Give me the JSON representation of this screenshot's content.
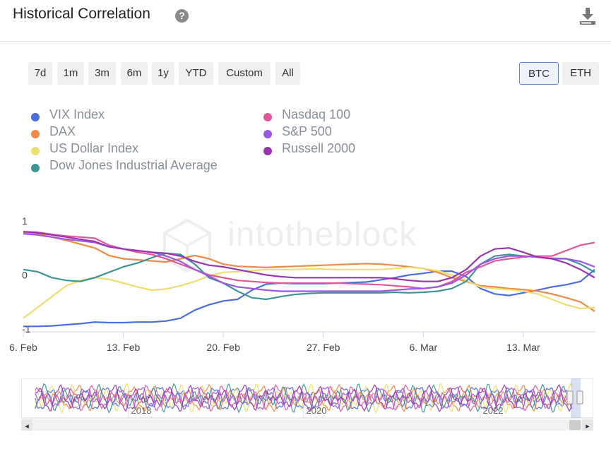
{
  "header": {
    "title": "Historical Correlation",
    "help_glyph": "?"
  },
  "ranges": [
    "7d",
    "1m",
    "3m",
    "6m",
    "1y",
    "YTD",
    "Custom",
    "All"
  ],
  "assets": {
    "btc": "BTC",
    "eth": "ETH",
    "selected": "BTC"
  },
  "watermark": "intotheblock",
  "legend": [
    {
      "label": "VIX Index",
      "color": "#4a6ee0"
    },
    {
      "label": "DAX",
      "color": "#ee8a4a"
    },
    {
      "label": "US Dollar Index",
      "color": "#eedf6e"
    },
    {
      "label": "Dow Jones Industrial Average",
      "color": "#3f9596"
    },
    {
      "label": "Nasdaq 100",
      "color": "#e0579c"
    },
    {
      "label": "S&P 500",
      "color": "#9b59e0"
    },
    {
      "label": "Russell 2000",
      "color": "#9a35b0"
    }
  ],
  "chart_data": {
    "type": "line",
    "x": [
      0,
      1,
      2,
      3,
      4,
      5,
      6,
      7,
      8,
      9,
      10,
      11,
      12,
      13,
      14,
      15,
      16,
      17,
      18,
      19,
      20,
      21,
      22,
      23,
      24,
      25,
      26,
      27,
      28,
      29,
      30,
      31,
      32,
      33,
      34,
      35,
      36,
      37,
      38,
      39,
      40
    ],
    "x_ticks": [
      {
        "x": 0,
        "label": "6. Feb"
      },
      {
        "x": 7,
        "label": "13. Feb"
      },
      {
        "x": 14,
        "label": "20. Feb"
      },
      {
        "x": 21,
        "label": "27. Feb"
      },
      {
        "x": 28,
        "label": "6. Mar"
      },
      {
        "x": 35,
        "label": "13. Mar"
      }
    ],
    "y_ticks": [
      {
        "y": 1,
        "label": "1"
      },
      {
        "y": 0,
        "label": "0"
      },
      {
        "y": -1,
        "label": "-1"
      }
    ],
    "ylim": [
      -1.05,
      1.05
    ],
    "series": [
      {
        "name": "VIX Index",
        "color": "#4a6ee0",
        "values": [
          -0.95,
          -0.95,
          -0.94,
          -0.92,
          -0.9,
          -0.87,
          -0.88,
          -0.88,
          -0.87,
          -0.87,
          -0.85,
          -0.8,
          -0.65,
          -0.55,
          -0.48,
          -0.45,
          -0.28,
          -0.17,
          -0.15,
          -0.16,
          -0.16,
          -0.16,
          -0.15,
          -0.14,
          -0.13,
          -0.09,
          -0.05,
          0.0,
          0.03,
          0.07,
          0.07,
          -0.03,
          -0.25,
          -0.35,
          -0.38,
          -0.33,
          -0.28,
          -0.22,
          -0.18,
          -0.12,
          0.1
        ]
      },
      {
        "name": "DAX",
        "color": "#ee8a4a",
        "values": [
          0.78,
          0.76,
          0.7,
          0.64,
          0.57,
          0.5,
          0.36,
          0.3,
          0.28,
          0.26,
          0.24,
          0.3,
          0.36,
          0.3,
          0.2,
          0.16,
          0.15,
          0.14,
          0.15,
          0.16,
          0.17,
          0.18,
          0.19,
          0.2,
          0.21,
          0.2,
          0.18,
          0.15,
          0.12,
          0.05,
          -0.05,
          -0.12,
          -0.2,
          -0.22,
          -0.25,
          -0.27,
          -0.3,
          -0.35,
          -0.42,
          -0.5,
          -0.67
        ]
      },
      {
        "name": "US Dollar Index",
        "color": "#eedf6e",
        "values": [
          -0.8,
          -0.6,
          -0.4,
          -0.2,
          -0.1,
          -0.05,
          -0.08,
          -0.15,
          -0.22,
          -0.28,
          -0.26,
          -0.2,
          -0.12,
          -0.02,
          0.05,
          0.06,
          0.08,
          0.1,
          0.1,
          0.1,
          0.11,
          0.11,
          0.1,
          0.1,
          0.1,
          0.1,
          0.12,
          0.14,
          0.12,
          0.08,
          0.0,
          -0.1,
          -0.22,
          -0.25,
          -0.27,
          -0.3,
          -0.35,
          -0.45,
          -0.55,
          -0.62,
          -0.6
        ]
      },
      {
        "name": "Dow Jones Industrial Average",
        "color": "#3f9596",
        "values": [
          0.1,
          0.06,
          -0.05,
          -0.1,
          -0.12,
          -0.05,
          0.05,
          0.15,
          0.22,
          0.32,
          0.4,
          0.38,
          0.2,
          -0.05,
          -0.15,
          -0.3,
          -0.42,
          -0.45,
          -0.4,
          -0.36,
          -0.34,
          -0.33,
          -0.33,
          -0.33,
          -0.33,
          -0.33,
          -0.32,
          -0.33,
          -0.32,
          -0.3,
          -0.25,
          -0.12,
          0.2,
          0.35,
          0.38,
          0.35,
          0.33,
          0.31,
          0.3,
          0.2,
          0.05
        ]
      },
      {
        "name": "Nasdaq 100",
        "color": "#e0579c",
        "values": [
          0.8,
          0.79,
          0.75,
          0.72,
          0.7,
          0.68,
          0.55,
          0.48,
          0.42,
          0.38,
          0.3,
          0.2,
          0.1,
          0.0,
          -0.05,
          -0.1,
          -0.12,
          -0.14,
          -0.15,
          -0.15,
          -0.15,
          -0.15,
          -0.15,
          -0.16,
          -0.17,
          -0.18,
          -0.2,
          -0.22,
          -0.25,
          -0.22,
          -0.12,
          0.05,
          0.15,
          0.26,
          0.3,
          0.33,
          0.35,
          0.35,
          0.45,
          0.55,
          0.6
        ]
      },
      {
        "name": "S&P 500",
        "color": "#9b59e0",
        "values": [
          0.76,
          0.74,
          0.7,
          0.66,
          0.63,
          0.6,
          0.52,
          0.48,
          0.45,
          0.42,
          0.35,
          0.25,
          0.1,
          -0.02,
          -0.15,
          -0.22,
          -0.25,
          -0.28,
          -0.3,
          -0.3,
          -0.3,
          -0.3,
          -0.3,
          -0.3,
          -0.3,
          -0.3,
          -0.28,
          -0.26,
          -0.25,
          -0.22,
          -0.15,
          0.0,
          0.2,
          0.3,
          0.35,
          0.35,
          0.33,
          0.3,
          0.3,
          0.25,
          0.15
        ]
      },
      {
        "name": "Russell 2000",
        "color": "#9a35b0",
        "values": [
          0.8,
          0.78,
          0.74,
          0.7,
          0.66,
          0.62,
          0.52,
          0.48,
          0.45,
          0.42,
          0.4,
          0.35,
          0.25,
          0.18,
          0.15,
          0.1,
          0.05,
          0.0,
          -0.03,
          -0.05,
          -0.05,
          -0.05,
          -0.05,
          -0.05,
          -0.05,
          -0.05,
          -0.07,
          -0.1,
          -0.12,
          -0.12,
          -0.05,
          0.1,
          0.35,
          0.48,
          0.5,
          0.42,
          0.33,
          0.3,
          0.22,
          0.1,
          -0.05
        ]
      }
    ]
  },
  "navigator": {
    "year_labels": [
      "2018",
      "2020",
      "2022"
    ],
    "scroll_left": "◂",
    "scroll_right": "▸"
  }
}
